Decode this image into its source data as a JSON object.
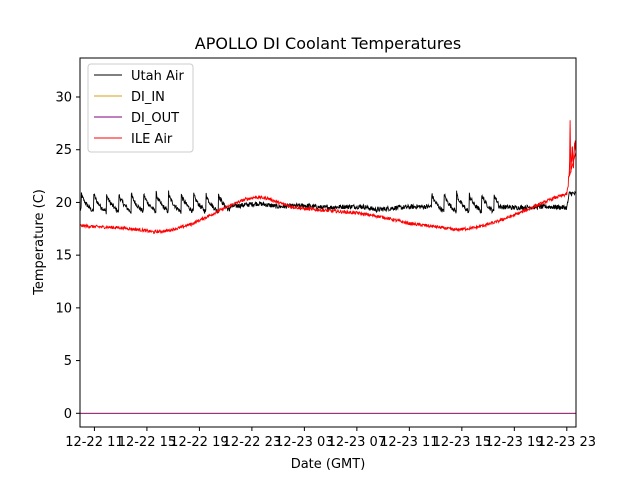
{
  "chart_data": {
    "type": "line",
    "title": "APOLLO DI Coolant Temperatures",
    "xlabel": "Date (GMT)",
    "ylabel": "Temperature (C)",
    "x_ticks": [
      "12-22 11",
      "12-22 15",
      "12-22 19",
      "12-22 23",
      "12-23 03",
      "12-23 07",
      "12-23 11",
      "12-23 15",
      "12-23 19",
      "12-23 23"
    ],
    "x_tick_hours": [
      11,
      15,
      19,
      23,
      27,
      31,
      35,
      39,
      43,
      47
    ],
    "xlim_hours": [
      9.9,
      47.7
    ],
    "ylim": [
      -1.3,
      33.7
    ],
    "y_ticks": [
      0,
      5,
      10,
      15,
      20,
      25,
      30
    ],
    "series": [
      {
        "name": "Utah Air",
        "color": "#000000",
        "sawtooth": {
          "hour_ranges": [
            [
              10.0,
              21.3
            ],
            [
              36.7,
              41.8
            ]
          ],
          "period_hours": 0.95,
          "low": 19.1,
          "high": 21.0
        },
        "points": [
          [
            9.9,
            19.3
          ],
          [
            21.3,
            19.6
          ],
          [
            22.0,
            19.7
          ],
          [
            23.5,
            19.9
          ],
          [
            25.0,
            19.6
          ],
          [
            27.0,
            19.7
          ],
          [
            28.5,
            19.5
          ],
          [
            30.0,
            19.6
          ],
          [
            31.5,
            19.6
          ],
          [
            32.5,
            19.3
          ],
          [
            34.0,
            19.5
          ],
          [
            35.5,
            19.6
          ],
          [
            36.7,
            19.6
          ],
          [
            41.8,
            19.6
          ],
          [
            43.0,
            19.5
          ],
          [
            45.5,
            19.6
          ],
          [
            47.0,
            19.5
          ],
          [
            47.2,
            20.9
          ],
          [
            47.7,
            20.8
          ]
        ]
      },
      {
        "name": "DI_IN",
        "color": "#d4a017",
        "points": [
          [
            9.9,
            0.0
          ],
          [
            47.7,
            0.0
          ]
        ]
      },
      {
        "name": "DI_OUT",
        "color": "#800080",
        "points": [
          [
            9.9,
            0.0
          ],
          [
            47.7,
            0.0
          ]
        ]
      },
      {
        "name": "ILE Air",
        "color": "#ff0000",
        "points": [
          [
            9.9,
            17.8
          ],
          [
            11.0,
            17.7
          ],
          [
            13.0,
            17.6
          ],
          [
            14.5,
            17.4
          ],
          [
            15.5,
            17.2
          ],
          [
            16.5,
            17.3
          ],
          [
            17.5,
            17.6
          ],
          [
            18.5,
            18.0
          ],
          [
            19.5,
            18.6
          ],
          [
            20.5,
            19.2
          ],
          [
            21.5,
            19.8
          ],
          [
            22.5,
            20.3
          ],
          [
            23.3,
            20.5
          ],
          [
            24.2,
            20.4
          ],
          [
            25.0,
            20.0
          ],
          [
            26.0,
            19.6
          ],
          [
            27.0,
            19.4
          ],
          [
            29.0,
            19.2
          ],
          [
            31.0,
            19.0
          ],
          [
            33.0,
            18.6
          ],
          [
            35.0,
            18.0
          ],
          [
            37.0,
            17.7
          ],
          [
            38.5,
            17.4
          ],
          [
            40.0,
            17.6
          ],
          [
            41.5,
            18.1
          ],
          [
            43.0,
            18.8
          ],
          [
            44.5,
            19.6
          ],
          [
            46.0,
            20.4
          ],
          [
            47.0,
            20.8
          ],
          [
            47.2,
            22.5
          ],
          [
            47.25,
            27.8
          ],
          [
            47.3,
            23.0
          ],
          [
            47.4,
            25.0
          ],
          [
            47.5,
            23.5
          ],
          [
            47.6,
            25.5
          ],
          [
            47.7,
            24.8
          ]
        ]
      }
    ],
    "legend_position": "upper-left",
    "grid": false
  }
}
